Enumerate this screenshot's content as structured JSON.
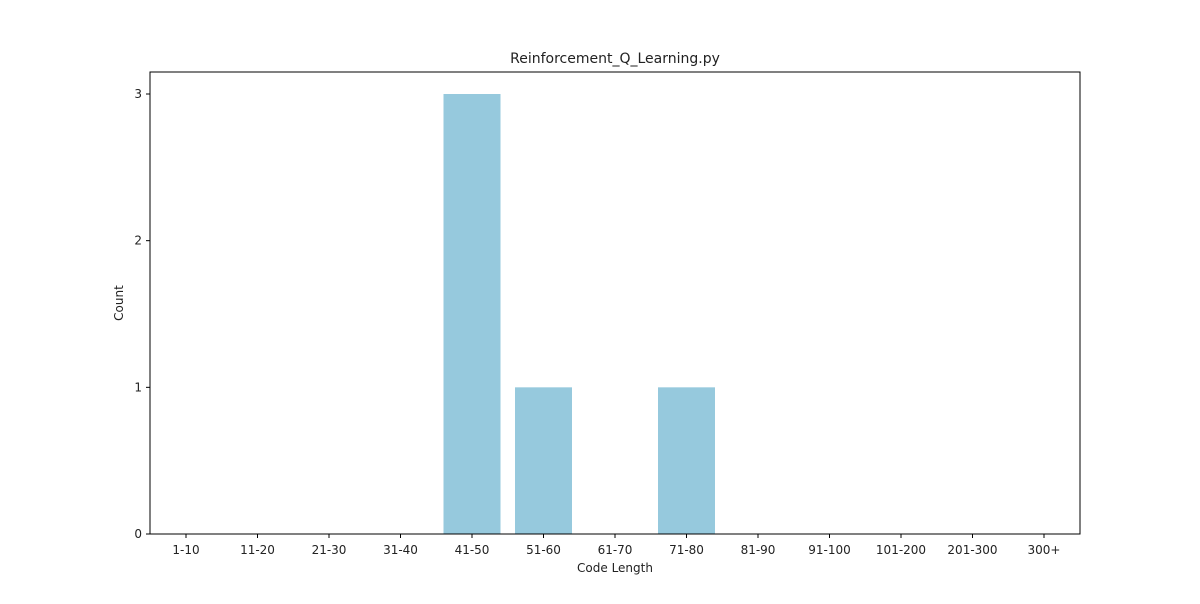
{
  "chart_data": {
    "type": "bar",
    "title": "Reinforcement_Q_Learning.py",
    "xlabel": "Code Length",
    "ylabel": "Count",
    "categories": [
      "1-10",
      "11-20",
      "21-30",
      "31-40",
      "41-50",
      "51-60",
      "61-70",
      "71-80",
      "81-90",
      "91-100",
      "101-200",
      "201-300",
      "300+"
    ],
    "values": [
      0,
      0,
      0,
      0,
      3,
      1,
      0,
      1,
      0,
      0,
      0,
      0,
      0
    ],
    "ylim": [
      0,
      3.15
    ],
    "yticks": [
      0,
      1,
      2,
      3
    ],
    "grid": false,
    "bar_color": "#96c9dd"
  }
}
